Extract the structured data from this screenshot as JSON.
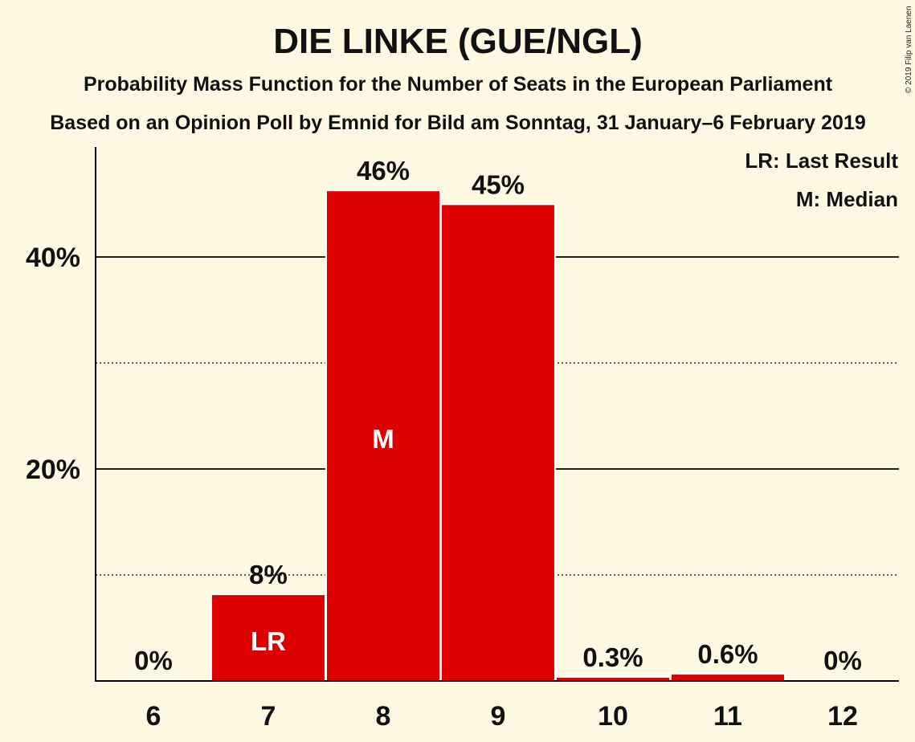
{
  "chart_data": {
    "type": "bar",
    "title": "DIE LINKE (GUE/NGL)",
    "subtitle": "Probability Mass Function for the Number of Seats in the European Parliament",
    "subtitle2": "Based on an Opinion Poll by Emnid for Bild am Sonntag, 31 January–6 February 2019",
    "copyright": "© 2019 Filip van Laenen",
    "legend": [
      "LR: Last Result",
      "M: Median"
    ],
    "legend_placement": "top-right",
    "categories": [
      "6",
      "7",
      "8",
      "9",
      "10",
      "11",
      "12"
    ],
    "values": [
      0,
      8.1,
      46.2,
      44.9,
      0.3,
      0.6,
      0
    ],
    "value_labels": [
      "0%",
      "8%",
      "46%",
      "45%",
      "0.3%",
      "0.6%",
      "0%"
    ],
    "inner_labels": [
      "",
      "LR",
      "M",
      "",
      "",
      "",
      ""
    ],
    "bar_color": "#dd0000",
    "ylim": [
      0,
      50
    ],
    "yticks_major": [
      20,
      40
    ],
    "ytick_labels": [
      "20%",
      "40%"
    ],
    "yticks_minor": [
      10,
      30
    ],
    "grid": true
  }
}
